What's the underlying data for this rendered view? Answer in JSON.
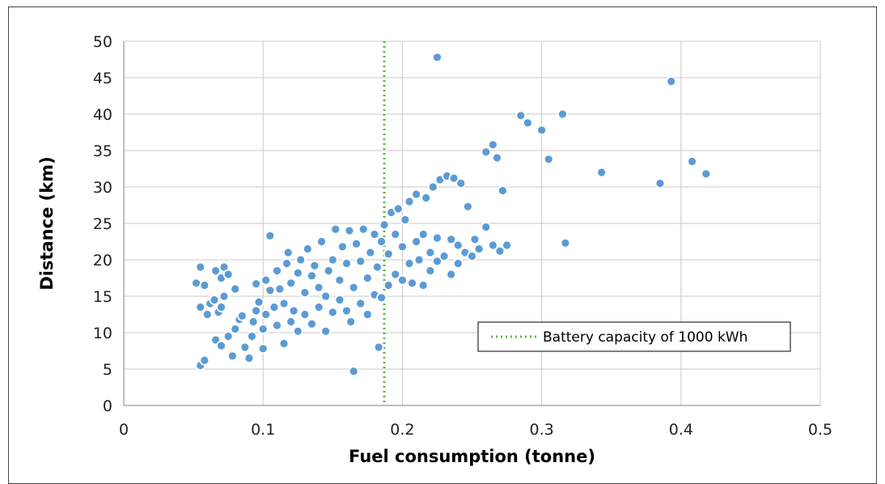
{
  "chart_data": {
    "type": "scatter",
    "xlabel": "Fuel consumption (tonne)",
    "ylabel": "Distance (km)",
    "xlim": [
      0,
      0.5
    ],
    "ylim": [
      0,
      50
    ],
    "x_ticks": [
      "0",
      "0.1",
      "0.2",
      "0.3",
      "0.4",
      "0.5"
    ],
    "y_ticks": [
      "0",
      "5",
      "10",
      "15",
      "20",
      "25",
      "30",
      "35",
      "40",
      "45",
      "50"
    ],
    "grid": true,
    "legend_position": "lower-right",
    "colors": {
      "points": "#5b9bd5",
      "reference_line": "#5fb346"
    },
    "reference_line": {
      "label": "Battery capacity of 1000 kWh",
      "x": 0.187,
      "style": "dotted"
    },
    "series": [
      {
        "points": [
          [
            0.055,
            5.5
          ],
          [
            0.058,
            6.2
          ],
          [
            0.06,
            12.5
          ],
          [
            0.055,
            13.5
          ],
          [
            0.052,
            16.8
          ],
          [
            0.055,
            19
          ],
          [
            0.058,
            16.5
          ],
          [
            0.062,
            14
          ],
          [
            0.066,
            18.5
          ],
          [
            0.07,
            17.5
          ],
          [
            0.072,
            19
          ],
          [
            0.065,
            14.5
          ],
          [
            0.068,
            12.8
          ],
          [
            0.07,
            13.5
          ],
          [
            0.072,
            15
          ],
          [
            0.075,
            18
          ],
          [
            0.08,
            16
          ],
          [
            0.066,
            9
          ],
          [
            0.07,
            8.2
          ],
          [
            0.075,
            9.5
          ],
          [
            0.078,
            6.8
          ],
          [
            0.08,
            10.5
          ],
          [
            0.083,
            11.8
          ],
          [
            0.085,
            12.3
          ],
          [
            0.087,
            8
          ],
          [
            0.09,
            6.5
          ],
          [
            0.092,
            9.5
          ],
          [
            0.093,
            11.5
          ],
          [
            0.095,
            13
          ],
          [
            0.095,
            16.7
          ],
          [
            0.097,
            14.2
          ],
          [
            0.1,
            10.5
          ],
          [
            0.1,
            7.8
          ],
          [
            0.102,
            12.5
          ],
          [
            0.102,
            17.2
          ],
          [
            0.105,
            15.8
          ],
          [
            0.105,
            23.3
          ],
          [
            0.108,
            13.5
          ],
          [
            0.11,
            11
          ],
          [
            0.11,
            18.5
          ],
          [
            0.112,
            16
          ],
          [
            0.115,
            8.5
          ],
          [
            0.115,
            14
          ],
          [
            0.117,
            19.5
          ],
          [
            0.118,
            21
          ],
          [
            0.12,
            11.5
          ],
          [
            0.12,
            16.8
          ],
          [
            0.122,
            13
          ],
          [
            0.125,
            10.2
          ],
          [
            0.125,
            18.2
          ],
          [
            0.127,
            20
          ],
          [
            0.13,
            12.5
          ],
          [
            0.13,
            15.5
          ],
          [
            0.132,
            21.5
          ],
          [
            0.135,
            11.2
          ],
          [
            0.135,
            17.8
          ],
          [
            0.137,
            19.2
          ],
          [
            0.14,
            13.5
          ],
          [
            0.14,
            16.2
          ],
          [
            0.142,
            22.5
          ],
          [
            0.145,
            10.2
          ],
          [
            0.145,
            15
          ],
          [
            0.147,
            18.5
          ],
          [
            0.15,
            12.8
          ],
          [
            0.15,
            20
          ],
          [
            0.152,
            24.2
          ],
          [
            0.155,
            14.5
          ],
          [
            0.155,
            17.2
          ],
          [
            0.157,
            21.8
          ],
          [
            0.16,
            13
          ],
          [
            0.16,
            19.5
          ],
          [
            0.162,
            24
          ],
          [
            0.163,
            11.5
          ],
          [
            0.165,
            4.7
          ],
          [
            0.165,
            16.2
          ],
          [
            0.167,
            22.2
          ],
          [
            0.17,
            14
          ],
          [
            0.17,
            19.8
          ],
          [
            0.172,
            24.2
          ],
          [
            0.175,
            12.5
          ],
          [
            0.175,
            17.5
          ],
          [
            0.177,
            21
          ],
          [
            0.18,
            15.2
          ],
          [
            0.18,
            23.5
          ],
          [
            0.182,
            19
          ],
          [
            0.183,
            8
          ],
          [
            0.185,
            14.8
          ],
          [
            0.185,
            22.5
          ],
          [
            0.187,
            24.8
          ],
          [
            0.19,
            16.5
          ],
          [
            0.19,
            20.8
          ],
          [
            0.192,
            26.5
          ],
          [
            0.195,
            18
          ],
          [
            0.195,
            23.5
          ],
          [
            0.197,
            27
          ],
          [
            0.2,
            17.2
          ],
          [
            0.2,
            21.8
          ],
          [
            0.202,
            25.5
          ],
          [
            0.205,
            19.5
          ],
          [
            0.205,
            28
          ],
          [
            0.207,
            16.8
          ],
          [
            0.21,
            22.5
          ],
          [
            0.21,
            29
          ],
          [
            0.212,
            20
          ],
          [
            0.215,
            16.5
          ],
          [
            0.215,
            23.5
          ],
          [
            0.217,
            28.5
          ],
          [
            0.22,
            18.5
          ],
          [
            0.22,
            21
          ],
          [
            0.222,
            30
          ],
          [
            0.225,
            19.8
          ],
          [
            0.225,
            23
          ],
          [
            0.227,
            31
          ],
          [
            0.225,
            47.8
          ],
          [
            0.23,
            20.5
          ],
          [
            0.232,
            31.5
          ],
          [
            0.235,
            18
          ],
          [
            0.235,
            22.8
          ],
          [
            0.237,
            31.2
          ],
          [
            0.24,
            19.5
          ],
          [
            0.24,
            22
          ],
          [
            0.242,
            30.5
          ],
          [
            0.245,
            21
          ],
          [
            0.247,
            27.3
          ],
          [
            0.25,
            20.5
          ],
          [
            0.252,
            22.8
          ],
          [
            0.255,
            21.5
          ],
          [
            0.26,
            24.5
          ],
          [
            0.26,
            34.8
          ],
          [
            0.265,
            22
          ],
          [
            0.265,
            35.8
          ],
          [
            0.268,
            34
          ],
          [
            0.27,
            21.2
          ],
          [
            0.272,
            29.5
          ],
          [
            0.275,
            22
          ],
          [
            0.285,
            39.8
          ],
          [
            0.29,
            38.8
          ],
          [
            0.3,
            37.8
          ],
          [
            0.305,
            33.8
          ],
          [
            0.315,
            40
          ],
          [
            0.317,
            22.3
          ],
          [
            0.343,
            32
          ],
          [
            0.385,
            30.5
          ],
          [
            0.393,
            44.5
          ],
          [
            0.408,
            33.5
          ],
          [
            0.418,
            31.8
          ]
        ]
      }
    ]
  }
}
